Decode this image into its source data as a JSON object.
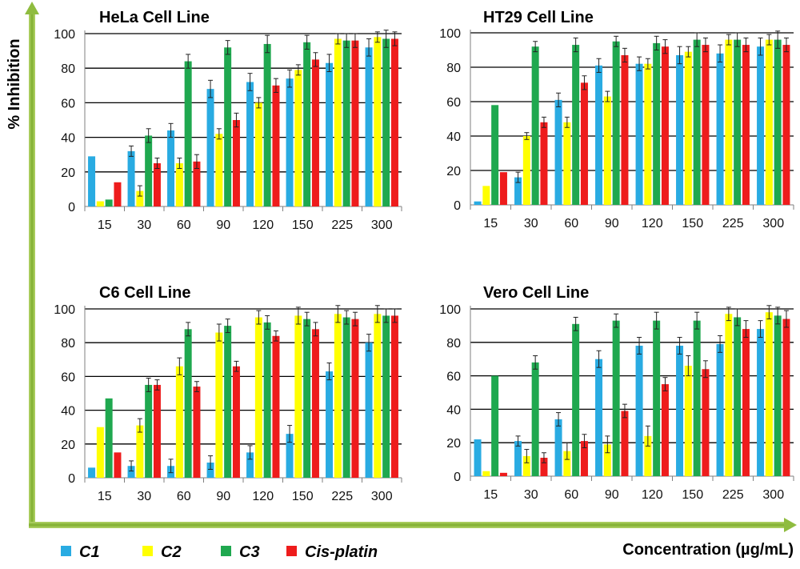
{
  "colors": {
    "C1": "#29abe2",
    "C2": "#ffff00",
    "C3": "#1fa84f",
    "Cis-platin": "#ee1c1c",
    "frame_arrow": "#8fbc3f"
  },
  "figure": {
    "ylabel": "% Inhibition",
    "xlabel": "Concentration (µg/mL)"
  },
  "legend": {
    "position": "bottom-left",
    "items": [
      {
        "name": "C1",
        "color": "#29abe2"
      },
      {
        "name": "C2",
        "color": "#ffff00"
      },
      {
        "name": "C3",
        "color": "#1fa84f"
      },
      {
        "name": "Cis-platin",
        "color": "#ee1c1c"
      }
    ]
  },
  "chart_data": [
    {
      "type": "bar",
      "title": "HeLa Cell Line",
      "categories": [
        "15",
        "30",
        "60",
        "90",
        "120",
        "150",
        "225",
        "300"
      ],
      "ylim": [
        0,
        100
      ],
      "yticks": [
        "0",
        "20",
        "40",
        "60",
        "80",
        "100"
      ],
      "grid": true,
      "series": [
        {
          "name": "C1",
          "values": [
            29,
            32,
            44,
            68,
            72,
            74,
            83,
            92
          ],
          "errors": [
            0,
            3,
            4,
            5,
            5,
            5,
            5,
            5
          ]
        },
        {
          "name": "C2",
          "values": [
            3,
            9,
            25,
            42,
            60,
            79,
            97,
            98
          ],
          "errors": [
            0,
            3,
            3,
            3,
            3,
            3,
            3,
            3
          ]
        },
        {
          "name": "C3",
          "values": [
            4,
            41,
            84,
            92,
            94,
            95,
            96,
            97
          ],
          "errors": [
            0,
            4,
            4,
            4,
            5,
            4,
            4,
            5
          ]
        },
        {
          "name": "Cis-platin",
          "values": [
            14,
            25,
            26,
            50,
            70,
            85,
            96,
            97
          ],
          "errors": [
            0,
            3,
            4,
            4,
            4,
            4,
            4,
            4
          ]
        }
      ]
    },
    {
      "type": "bar",
      "title": "HT29 Cell Line",
      "categories": [
        "15",
        "30",
        "60",
        "90",
        "120",
        "150",
        "225",
        "300"
      ],
      "ylim": [
        0,
        100
      ],
      "yticks": [
        "0",
        "20",
        "40",
        "60",
        "80",
        "100"
      ],
      "grid": true,
      "series": [
        {
          "name": "C1",
          "values": [
            2,
            16,
            61,
            81,
            82,
            87,
            88,
            92
          ],
          "errors": [
            0,
            3,
            4,
            4,
            4,
            5,
            5,
            5
          ]
        },
        {
          "name": "C2",
          "values": [
            11,
            40,
            48,
            63,
            82,
            89,
            96,
            96
          ],
          "errors": [
            0,
            2,
            3,
            3,
            3,
            3,
            3,
            3
          ]
        },
        {
          "name": "C3",
          "values": [
            58,
            92,
            93,
            95,
            94,
            96,
            96,
            96
          ],
          "errors": [
            0,
            3,
            4,
            3,
            4,
            4,
            4,
            5
          ]
        },
        {
          "name": "Cis-platin",
          "values": [
            19,
            48,
            71,
            87,
            92,
            93,
            93,
            93
          ],
          "errors": [
            0,
            3,
            4,
            4,
            4,
            4,
            4,
            4
          ]
        }
      ]
    },
    {
      "type": "bar",
      "title": "C6 Cell Line",
      "categories": [
        "15",
        "30",
        "60",
        "90",
        "120",
        "150",
        "225",
        "300"
      ],
      "ylim": [
        0,
        100
      ],
      "yticks": [
        "0",
        "20",
        "40",
        "60",
        "80",
        "100"
      ],
      "grid": true,
      "series": [
        {
          "name": "C1",
          "values": [
            6,
            7,
            7,
            9,
            15,
            26,
            63,
            80
          ],
          "errors": [
            0,
            3,
            4,
            4,
            4,
            5,
            5,
            5
          ]
        },
        {
          "name": "C2",
          "values": [
            30,
            31,
            66,
            86,
            95,
            96,
            97,
            97
          ],
          "errors": [
            0,
            4,
            5,
            5,
            4,
            5,
            5,
            5
          ]
        },
        {
          "name": "C3",
          "values": [
            47,
            55,
            88,
            90,
            92,
            94,
            95,
            96
          ],
          "errors": [
            0,
            4,
            4,
            4,
            4,
            4,
            4,
            4
          ]
        },
        {
          "name": "Cis-platin",
          "values": [
            15,
            55,
            54,
            66,
            84,
            88,
            94,
            96
          ],
          "errors": [
            0,
            3,
            3,
            3,
            3,
            4,
            4,
            4
          ]
        }
      ]
    },
    {
      "type": "bar",
      "title": "Vero Cell Line",
      "categories": [
        "15",
        "30",
        "60",
        "90",
        "120",
        "150",
        "225",
        "300"
      ],
      "ylim": [
        0,
        100
      ],
      "yticks": [
        "0",
        "20",
        "40",
        "60",
        "80",
        "100"
      ],
      "grid": true,
      "series": [
        {
          "name": "C1",
          "values": [
            22,
            21,
            34,
            70,
            78,
            78,
            79,
            88
          ],
          "errors": [
            0,
            3,
            4,
            5,
            5,
            5,
            5,
            5
          ]
        },
        {
          "name": "C2",
          "values": [
            3,
            12,
            15,
            19,
            24,
            66,
            97,
            98
          ],
          "errors": [
            0,
            4,
            5,
            5,
            6,
            6,
            4,
            4
          ]
        },
        {
          "name": "C3",
          "values": [
            60,
            68,
            91,
            93,
            93,
            93,
            95,
            96
          ],
          "errors": [
            0,
            4,
            4,
            4,
            5,
            5,
            5,
            5
          ]
        },
        {
          "name": "Cis-platin",
          "values": [
            2,
            11,
            21,
            39,
            55,
            64,
            88,
            94
          ],
          "errors": [
            0,
            3,
            4,
            4,
            4,
            5,
            5,
            5
          ]
        }
      ]
    }
  ]
}
